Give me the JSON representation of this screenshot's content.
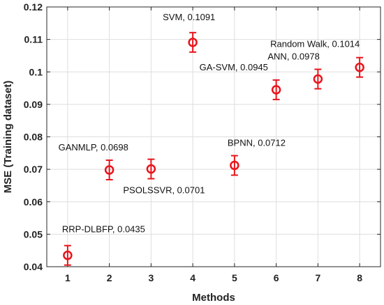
{
  "chart_data": {
    "type": "scatter",
    "xlabel": "Methods",
    "ylabel": "MSE (Training dataset)",
    "xlim": [
      0.5,
      8.5
    ],
    "ylim": [
      0.04,
      0.12
    ],
    "xticks": [
      "1",
      "2",
      "3",
      "4",
      "5",
      "6",
      "7",
      "8"
    ],
    "yticks": [
      "0.04",
      "0.05",
      "0.06",
      "0.07",
      "0.08",
      "0.09",
      "0.1",
      "0.11",
      "0.12"
    ],
    "grid": true,
    "marker": "circle",
    "color": "#e8141b",
    "points": [
      {
        "x": 1,
        "y": 0.0435,
        "err": 0.003,
        "label": "RRP-DLBFP, 0.0435"
      },
      {
        "x": 2,
        "y": 0.0698,
        "err": 0.003,
        "label": "GANMLP, 0.0698"
      },
      {
        "x": 3,
        "y": 0.0701,
        "err": 0.003,
        "label": "PSOLSSVR, 0.0701"
      },
      {
        "x": 4,
        "y": 0.1091,
        "err": 0.003,
        "label": "SVM, 0.1091"
      },
      {
        "x": 5,
        "y": 0.0712,
        "err": 0.003,
        "label": "BPNN, 0.0712"
      },
      {
        "x": 6,
        "y": 0.0945,
        "err": 0.003,
        "label": "GA-SVM, 0.0945"
      },
      {
        "x": 7,
        "y": 0.0978,
        "err": 0.003,
        "label": "ANN, 0.0978"
      },
      {
        "x": 8,
        "y": 0.1014,
        "err": 0.003,
        "label": "Random Walk, 0.1014"
      }
    ]
  }
}
